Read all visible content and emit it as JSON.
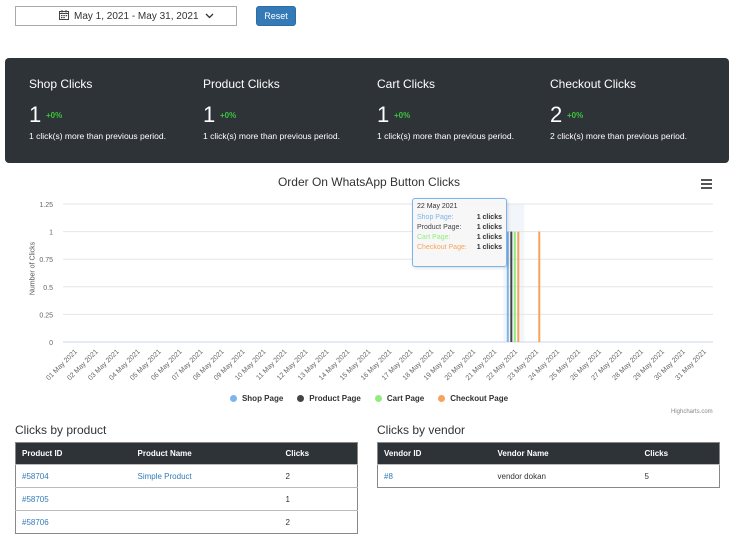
{
  "filters": {
    "date_range": "May 1, 2021 - May 31, 2021",
    "reset_label": "Reset"
  },
  "stats": [
    {
      "title": "Shop Clicks",
      "value": "1",
      "change": "+0%",
      "desc": "1 click(s) more than previous period."
    },
    {
      "title": "Product Clicks",
      "value": "1",
      "change": "+0%",
      "desc": "1 click(s) more than previous period."
    },
    {
      "title": "Cart Clicks",
      "value": "1",
      "change": "+0%",
      "desc": "1 click(s) more than previous period."
    },
    {
      "title": "Checkout Clicks",
      "value": "2",
      "change": "+0%",
      "desc": "2 click(s) more than previous period."
    }
  ],
  "chart_data": {
    "type": "bar",
    "title": "Order On WhatsApp Button Clicks",
    "ylabel": "Number of Clicks",
    "ylim": [
      0,
      1.25
    ],
    "yticks": [
      "0",
      "0.25",
      "0.5",
      "0.75",
      "1",
      "1.25"
    ],
    "categories": [
      "01 May 2021",
      "02 May 2021",
      "03 May 2021",
      "04 May 2021",
      "05 May 2021",
      "06 May 2021",
      "07 May 2021",
      "08 May 2021",
      "09 May 2021",
      "10 May 2021",
      "11 May 2021",
      "12 May 2021",
      "13 May 2021",
      "14 May 2021",
      "15 May 2021",
      "16 May 2021",
      "17 May 2021",
      "18 May 2021",
      "19 May 2021",
      "20 May 2021",
      "21 May 2021",
      "22 May 2021",
      "23 May 2021",
      "24 May 2021",
      "25 May 2021",
      "26 May 2021",
      "27 May 2021",
      "28 May 2021",
      "29 May 2021",
      "30 May 2021",
      "31 May 2021"
    ],
    "series": [
      {
        "name": "Shop Page",
        "color": "#7cb5ec",
        "values": [
          0,
          0,
          0,
          0,
          0,
          0,
          0,
          0,
          0,
          0,
          0,
          0,
          0,
          0,
          0,
          0,
          0,
          0,
          0,
          0,
          0,
          1,
          0,
          0,
          0,
          0,
          0,
          0,
          0,
          0,
          0
        ]
      },
      {
        "name": "Product Page",
        "color": "#434348",
        "values": [
          0,
          0,
          0,
          0,
          0,
          0,
          0,
          0,
          0,
          0,
          0,
          0,
          0,
          0,
          0,
          0,
          0,
          0,
          0,
          0,
          0,
          1,
          0,
          0,
          0,
          0,
          0,
          0,
          0,
          0,
          0
        ]
      },
      {
        "name": "Cart Page",
        "color": "#90ed7d",
        "values": [
          0,
          0,
          0,
          0,
          0,
          0,
          0,
          0,
          0,
          0,
          0,
          0,
          0,
          0,
          0,
          0,
          0,
          0,
          0,
          0,
          0,
          1,
          0,
          0,
          0,
          0,
          0,
          0,
          0,
          0,
          0
        ]
      },
      {
        "name": "Checkout Page",
        "color": "#f7a35c",
        "values": [
          0,
          0,
          0,
          0,
          0,
          0,
          0,
          0,
          0,
          0,
          0,
          0,
          0,
          0,
          0,
          0,
          0,
          0,
          0,
          0,
          0,
          1,
          1,
          0,
          0,
          0,
          0,
          0,
          0,
          0,
          0
        ]
      }
    ],
    "legend": "bottom",
    "credit": "Highcharts.com",
    "tooltip": {
      "date": "22 May 2021",
      "rows": [
        {
          "label": "Shop Page:",
          "value": "1 clicks",
          "color": "#7cb5ec"
        },
        {
          "label": "Product Page:",
          "value": "1 clicks",
          "color": "#434348"
        },
        {
          "label": "Cart Page:",
          "value": "1 clicks",
          "color": "#90ed7d"
        },
        {
          "label": "Checkout Page:",
          "value": "1 clicks",
          "color": "#f7a35c"
        }
      ]
    }
  },
  "products": {
    "title": "Clicks by product",
    "headers": [
      "Product ID",
      "Product Name",
      "Clicks"
    ],
    "rows": [
      {
        "id": "#58704",
        "name": "Simple Product",
        "clicks": "2"
      },
      {
        "id": "#58705",
        "name": "",
        "clicks": "1"
      },
      {
        "id": "#58706",
        "name": "",
        "clicks": "2"
      }
    ]
  },
  "vendors": {
    "title": "Clicks by vendor",
    "headers": [
      "Vendor ID",
      "Vendor Name",
      "Clicks"
    ],
    "rows": [
      {
        "id": "#8",
        "name": "vendor dokan",
        "clicks": "5"
      }
    ]
  }
}
